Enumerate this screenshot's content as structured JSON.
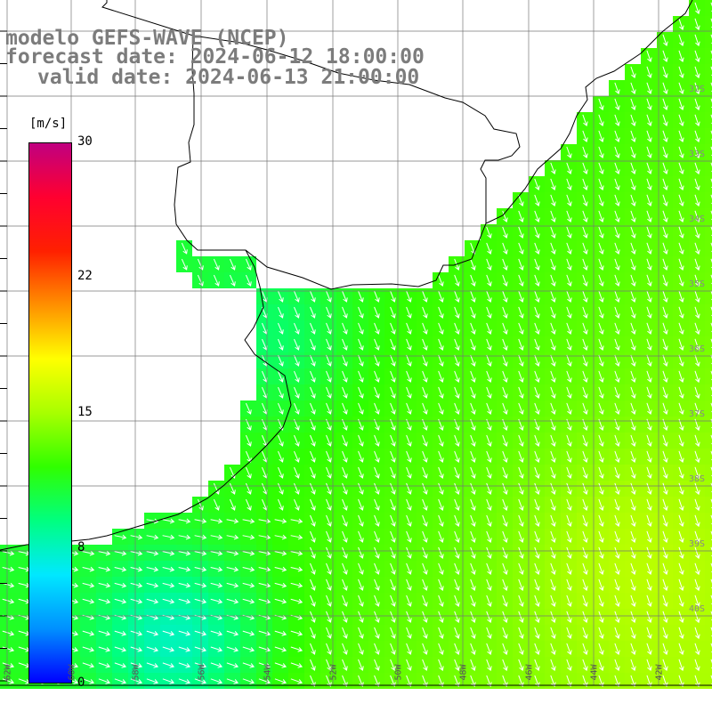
{
  "title": {
    "line1": "modelo GEFS-WAVE (NCEP)",
    "line2": "forecast date: 2024-06-12 18:00:00",
    "line3": "valid date: 2024-06-13 21:00:00"
  },
  "colorbar": {
    "unit": "[m/s]",
    "ticks": [
      "30",
      "22",
      "15",
      "8",
      "0"
    ],
    "tick_values": [
      30,
      22,
      15,
      8,
      0
    ],
    "range": [
      0,
      30
    ],
    "colors": [
      "#0000ff",
      "#0090ff",
      "#00e8ff",
      "#00ff80",
      "#30ff00",
      "#a8ff00",
      "#ffff00",
      "#ff9000",
      "#ff2000",
      "#ff0030",
      "#c00080"
    ]
  },
  "map": {
    "land_color": "#ffffff",
    "grid": true,
    "lon_labels": [
      "62W",
      "60W",
      "58W",
      "56W",
      "54W",
      "52W",
      "50W",
      "48W",
      "46W",
      "44W",
      "42W"
    ],
    "lat_labels": [
      "32S",
      "33S",
      "34S",
      "35S",
      "36S",
      "37S",
      "38S",
      "39S",
      "40S"
    ],
    "wind_direction": "south-southeast"
  }
}
